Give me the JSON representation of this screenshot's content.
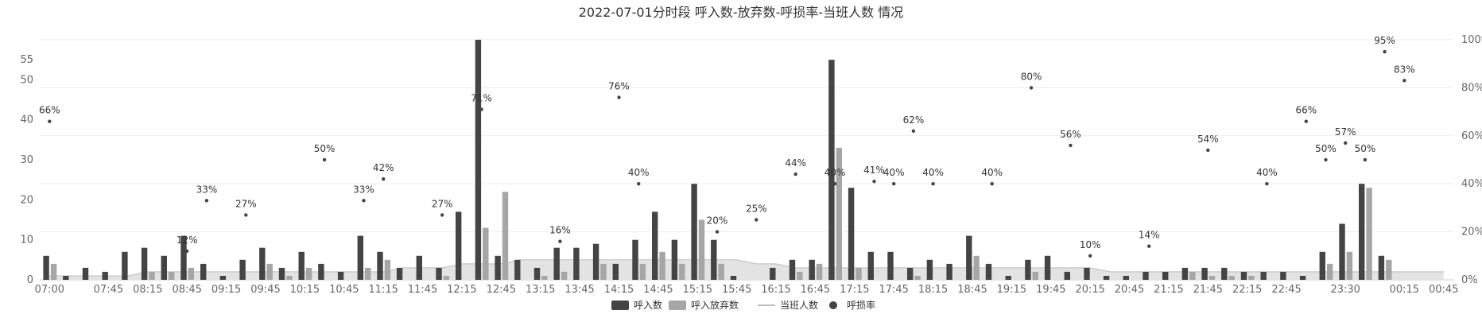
{
  "chart_data": {
    "type": "bar",
    "title": "2022-07-01分时段 呼入数-放弃数-呼损率-当班人数 情况",
    "categories": [
      "07:00",
      "07:15",
      "07:30",
      "07:45",
      "08:00",
      "08:15",
      "08:30",
      "08:45",
      "09:00",
      "09:15",
      "09:30",
      "09:45",
      "10:00",
      "10:15",
      "10:30",
      "10:45",
      "11:00",
      "11:15",
      "11:30",
      "11:45",
      "12:00",
      "12:15",
      "12:30",
      "12:45",
      "13:00",
      "13:15",
      "13:30",
      "13:45",
      "14:00",
      "14:15",
      "14:30",
      "14:45",
      "15:00",
      "15:15",
      "15:30",
      "15:45",
      "16:00",
      "16:15",
      "16:30",
      "16:45",
      "17:00",
      "17:15",
      "17:30",
      "17:45",
      "18:00",
      "18:15",
      "18:30",
      "18:45",
      "19:00",
      "19:15",
      "19:30",
      "19:45",
      "20:00",
      "20:15",
      "20:30",
      "20:45",
      "21:00",
      "21:15",
      "21:30",
      "21:45",
      "22:00",
      "22:15",
      "22:30",
      "22:45",
      "23:00",
      "23:15",
      "23:30",
      "23:45",
      "00:00",
      "00:15",
      "00:30",
      "00:45"
    ],
    "x_tick_labels": [
      "07:00",
      "07:45",
      "08:15",
      "08:45",
      "09:15",
      "09:45",
      "10:15",
      "10:45",
      "11:15",
      "11:45",
      "12:15",
      "12:45",
      "13:15",
      "13:45",
      "14:15",
      "14:45",
      "15:15",
      "15:45",
      "16:15",
      "16:45",
      "17:15",
      "17:45",
      "18:15",
      "18:45",
      "19:15",
      "19:45",
      "20:15",
      "20:45",
      "21:15",
      "21:45",
      "22:15",
      "22:45",
      "23:30",
      "00:15",
      "00:45"
    ],
    "series": [
      {
        "name": "呼入数",
        "type": "bar",
        "color": "#444444",
        "values": [
          6,
          1,
          3,
          2,
          7,
          8,
          6,
          11,
          4,
          1,
          5,
          8,
          3,
          7,
          4,
          2,
          11,
          7,
          3,
          6,
          3,
          17,
          60,
          6,
          5,
          3,
          8,
          8,
          9,
          4,
          10,
          17,
          10,
          24,
          10,
          1,
          0,
          3,
          5,
          5,
          55,
          23,
          7,
          7,
          3,
          5,
          4,
          11,
          4,
          1,
          5,
          6,
          2,
          3,
          1,
          1,
          2,
          2,
          3,
          3,
          3,
          2,
          2,
          2,
          1,
          7,
          14,
          24,
          6,
          0,
          0,
          0
        ]
      },
      {
        "name": "呼入放弃数",
        "type": "bar",
        "color": "#a6a6a6",
        "values": [
          4,
          0,
          0,
          0,
          0,
          2,
          2,
          3,
          0,
          0,
          0,
          4,
          1,
          3,
          0,
          0,
          3,
          5,
          0,
          0,
          1,
          0,
          13,
          22,
          0,
          1,
          2,
          0,
          4,
          0,
          4,
          7,
          4,
          15,
          4,
          0,
          0,
          0,
          2,
          4,
          33,
          3,
          0,
          0,
          1,
          0,
          0,
          6,
          0,
          0,
          2,
          0,
          0,
          0,
          0,
          0,
          0,
          0,
          2,
          1,
          1,
          1,
          0,
          0,
          0,
          4,
          7,
          23,
          5,
          0,
          0,
          0
        ]
      },
      {
        "name": "当班人数",
        "type": "area",
        "color": "#cccccc",
        "values": [
          1,
          1,
          1,
          1,
          1,
          2,
          2,
          2,
          2,
          2,
          2,
          2,
          2,
          2,
          2,
          2,
          2,
          2,
          3,
          3,
          3,
          4,
          4,
          4,
          5,
          5,
          5,
          5,
          5,
          5,
          5,
          5,
          5,
          5,
          5,
          5,
          4,
          4,
          3,
          3,
          3,
          3,
          3,
          3,
          3,
          3,
          3,
          3,
          3,
          3,
          3,
          3,
          3,
          3,
          2,
          2,
          2,
          2,
          2,
          2,
          2,
          2,
          2,
          2,
          2,
          2,
          2,
          2,
          2,
          2,
          2,
          2
        ]
      },
      {
        "name": "呼损率",
        "type": "scatter",
        "color": "#444444",
        "axis": "right",
        "points": [
          {
            "i": 0,
            "v": 66
          },
          {
            "i": 7,
            "v": 12
          },
          {
            "i": 8,
            "v": 33
          },
          {
            "i": 10,
            "v": 27
          },
          {
            "i": 14,
            "v": 50
          },
          {
            "i": 16,
            "v": 33
          },
          {
            "i": 17,
            "v": 42
          },
          {
            "i": 20,
            "v": 27
          },
          {
            "i": 22,
            "v": 71
          },
          {
            "i": 26,
            "v": 16
          },
          {
            "i": 29,
            "v": 76
          },
          {
            "i": 30,
            "v": 40
          },
          {
            "i": 34,
            "v": 20
          },
          {
            "i": 36,
            "v": 25
          },
          {
            "i": 38,
            "v": 44
          },
          {
            "i": 40,
            "v": 40
          },
          {
            "i": 42,
            "v": 41
          },
          {
            "i": 43,
            "v": 40
          },
          {
            "i": 44,
            "v": 62
          },
          {
            "i": 45,
            "v": 40
          },
          {
            "i": 48,
            "v": 40
          },
          {
            "i": 50,
            "v": 80
          },
          {
            "i": 52,
            "v": 56
          },
          {
            "i": 53,
            "v": 10
          },
          {
            "i": 56,
            "v": 14
          },
          {
            "i": 59,
            "v": 54
          },
          {
            "i": 62,
            "v": 40
          },
          {
            "i": 64,
            "v": 66
          },
          {
            "i": 65,
            "v": 50
          },
          {
            "i": 66,
            "v": 57
          },
          {
            "i": 67,
            "v": 50
          },
          {
            "i": 68,
            "v": 95
          },
          {
            "i": 69,
            "v": 83
          }
        ]
      }
    ],
    "y_left": {
      "ticks": [
        0,
        10,
        20,
        30,
        40,
        50,
        55
      ]
    },
    "y_right": {
      "ticks": [
        "0%",
        "20%",
        "40%",
        "60%",
        "80%",
        "100%"
      ]
    },
    "grid": true,
    "legend_position": "bottom-center"
  }
}
